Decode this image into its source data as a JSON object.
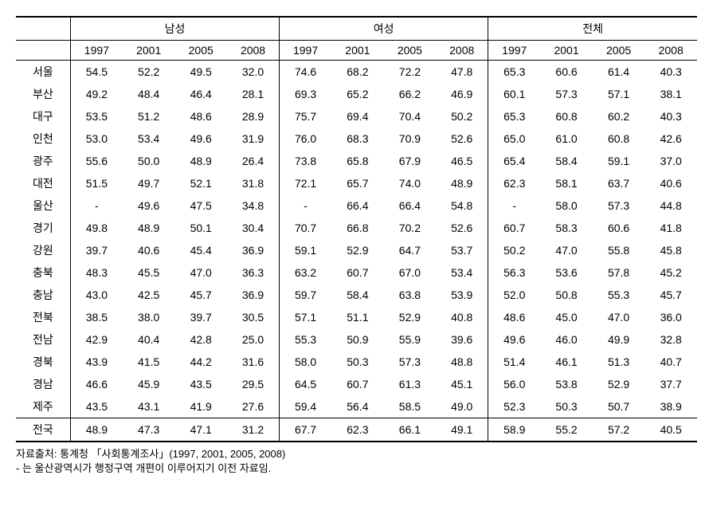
{
  "table": {
    "group_headers": [
      "남성",
      "여성",
      "전체"
    ],
    "year_headers": [
      "1997",
      "2001",
      "2005",
      "2008"
    ],
    "regions": [
      "서울",
      "부산",
      "대구",
      "인천",
      "광주",
      "대전",
      "울산",
      "경기",
      "강원",
      "충북",
      "충남",
      "전북",
      "전남",
      "경북",
      "경남",
      "제주"
    ],
    "total_label": "전국",
    "rows": [
      [
        "서울",
        "54.5",
        "52.2",
        "49.5",
        "32.0",
        "74.6",
        "68.2",
        "72.2",
        "47.8",
        "65.3",
        "60.6",
        "61.4",
        "40.3"
      ],
      [
        "부산",
        "49.2",
        "48.4",
        "46.4",
        "28.1",
        "69.3",
        "65.2",
        "66.2",
        "46.9",
        "60.1",
        "57.3",
        "57.1",
        "38.1"
      ],
      [
        "대구",
        "53.5",
        "51.2",
        "48.6",
        "28.9",
        "75.7",
        "69.4",
        "70.4",
        "50.2",
        "65.3",
        "60.8",
        "60.2",
        "40.3"
      ],
      [
        "인천",
        "53.0",
        "53.4",
        "49.6",
        "31.9",
        "76.0",
        "68.3",
        "70.9",
        "52.6",
        "65.0",
        "61.0",
        "60.8",
        "42.6"
      ],
      [
        "광주",
        "55.6",
        "50.0",
        "48.9",
        "26.4",
        "73.8",
        "65.8",
        "67.9",
        "46.5",
        "65.4",
        "58.4",
        "59.1",
        "37.0"
      ],
      [
        "대전",
        "51.5",
        "49.7",
        "52.1",
        "31.8",
        "72.1",
        "65.7",
        "74.0",
        "48.9",
        "62.3",
        "58.1",
        "63.7",
        "40.6"
      ],
      [
        "울산",
        "-",
        "49.6",
        "47.5",
        "34.8",
        "-",
        "66.4",
        "66.4",
        "54.8",
        "-",
        "58.0",
        "57.3",
        "44.8"
      ],
      [
        "경기",
        "49.8",
        "48.9",
        "50.1",
        "30.4",
        "70.7",
        "66.8",
        "70.2",
        "52.6",
        "60.7",
        "58.3",
        "60.6",
        "41.8"
      ],
      [
        "강원",
        "39.7",
        "40.6",
        "45.4",
        "36.9",
        "59.1",
        "52.9",
        "64.7",
        "53.7",
        "50.2",
        "47.0",
        "55.8",
        "45.8"
      ],
      [
        "충북",
        "48.3",
        "45.5",
        "47.0",
        "36.3",
        "63.2",
        "60.7",
        "67.0",
        "53.4",
        "56.3",
        "53.6",
        "57.8",
        "45.2"
      ],
      [
        "충남",
        "43.0",
        "42.5",
        "45.7",
        "36.9",
        "59.7",
        "58.4",
        "63.8",
        "53.9",
        "52.0",
        "50.8",
        "55.3",
        "45.7"
      ],
      [
        "전북",
        "38.5",
        "38.0",
        "39.7",
        "30.5",
        "57.1",
        "51.1",
        "52.9",
        "40.8",
        "48.6",
        "45.0",
        "47.0",
        "36.0"
      ],
      [
        "전남",
        "42.9",
        "40.4",
        "42.8",
        "25.0",
        "55.3",
        "50.9",
        "55.9",
        "39.6",
        "49.6",
        "46.0",
        "49.9",
        "32.8"
      ],
      [
        "경북",
        "43.9",
        "41.5",
        "44.2",
        "31.6",
        "58.0",
        "50.3",
        "57.3",
        "48.8",
        "51.4",
        "46.1",
        "51.3",
        "40.7"
      ],
      [
        "경남",
        "46.6",
        "45.9",
        "43.5",
        "29.5",
        "64.5",
        "60.7",
        "61.3",
        "45.1",
        "56.0",
        "53.8",
        "52.9",
        "37.7"
      ],
      [
        "제주",
        "43.5",
        "43.1",
        "41.9",
        "27.6",
        "59.4",
        "56.4",
        "58.5",
        "49.0",
        "52.3",
        "50.3",
        "50.7",
        "38.9"
      ]
    ],
    "total_row": [
      "전국",
      "48.9",
      "47.3",
      "47.1",
      "31.2",
      "67.7",
      "62.3",
      "66.1",
      "49.1",
      "58.9",
      "55.2",
      "57.2",
      "40.5"
    ]
  },
  "footer": {
    "line1": "자료출처: 통계청 「사회통계조사」(1997, 2001, 2005, 2008)",
    "line2": "- 는 울산광역시가 행정구역 개편이 이루어지기 이전 자료임."
  },
  "styling": {
    "font_family": "Malgun Gothic",
    "cell_font_size": 14,
    "footer_font_size": 13,
    "border_color": "#000000",
    "background_color": "#ffffff",
    "text_color": "#000000",
    "col_count": 13,
    "group_col_span": 4,
    "first_col_width_pct": 8,
    "data_col_width_pct": 7.67
  }
}
